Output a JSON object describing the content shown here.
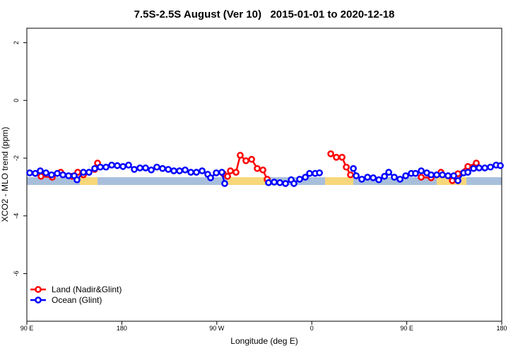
{
  "chart_data": {
    "type": "line",
    "title": "7.5S-2.5S August (Ver 10)   2015-01-01 to 2020-12-18",
    "x_label": "Longitude (deg E)",
    "y_label": "XCO2 - MLO trend (ppm)",
    "xlim": [
      90,
      540
    ],
    "ylim": [
      -7.65,
      2.5
    ],
    "xticks": [
      {
        "value": 90,
        "label": "90 E"
      },
      {
        "value": 180,
        "label": "180"
      },
      {
        "value": 270,
        "label": "90 W"
      },
      {
        "value": 360,
        "label": "0"
      },
      {
        "value": 450,
        "label": "90 E"
      },
      {
        "value": 540,
        "label": "180"
      }
    ],
    "yticks": [
      2,
      0,
      -2,
      -4,
      -6
    ],
    "legend_position": "bottom-left",
    "series": [
      {
        "name": "Land (Nadir&Glint)",
        "color": "#ff0000",
        "x": [
          103.4,
          114.1,
          122.1,
          132.9,
          138.2,
          143.6,
          154.3,
          157.0,
          220,
          276.2,
          280.2,
          282.9,
          288.2,
          292.2,
          297.6,
          303.0,
          308.3,
          313.7,
          317.7,
          350,
          378.0,
          383.3,
          388.7,
          392.7,
          396.7,
          430,
          463.7,
          473.1,
          482.4,
          493.2,
          498.5,
          507.9,
          515.9
        ],
        "values": [
          -2.63,
          -2.66,
          -2.49,
          -2.63,
          -2.49,
          -2.58,
          -2.39,
          -2.17,
          null,
          -2.54,
          -2.63,
          -2.44,
          -2.49,
          -1.9,
          -2.09,
          -2.04,
          -2.36,
          -2.41,
          -2.73,
          null,
          -1.85,
          -1.97,
          -1.97,
          -2.31,
          -2.58,
          null,
          -2.66,
          -2.68,
          -2.49,
          -2.78,
          -2.54,
          -2.29,
          -2.17
        ]
      },
      {
        "name": "Ocean (Glint)",
        "color": "#0000ff",
        "x": [
          92.7,
          98.0,
          102.7,
          108.1,
          113.4,
          118.8,
          124.2,
          129.5,
          134.9,
          137.5,
          143.6,
          148.9,
          154.3,
          159.6,
          165.0,
          170.4,
          175.7,
          181.1,
          186.4,
          191.8,
          197.2,
          202.5,
          207.9,
          213.2,
          218.6,
          224.0,
          229.3,
          234.7,
          240.0,
          245.4,
          250.7,
          256.1,
          261.4,
          264.1,
          269.5,
          274.8,
          277.5,
          298,
          319.0,
          324.4,
          329.8,
          335.1,
          340.5,
          343.1,
          348.5,
          353.9,
          357.9,
          363.2,
          367.3,
          383,
          399.4,
          402.1,
          407.4,
          412.8,
          418.2,
          423.5,
          428.9,
          432.9,
          438.2,
          443.6,
          449.0,
          454.3,
          458.3,
          463.7,
          469.0,
          473.1,
          478.4,
          483.8,
          489.1,
          494.5,
          498.5,
          503.9,
          507.9,
          513.3,
          518.6,
          524.0,
          529.3,
          534.7,
          538.7
        ],
        "values": [
          -2.51,
          -2.53,
          -2.44,
          -2.51,
          -2.58,
          -2.53,
          -2.58,
          -2.61,
          -2.61,
          -2.75,
          -2.49,
          -2.49,
          -2.36,
          -2.31,
          -2.31,
          -2.24,
          -2.26,
          -2.29,
          -2.24,
          -2.39,
          -2.34,
          -2.34,
          -2.41,
          -2.31,
          -2.36,
          -2.39,
          -2.44,
          -2.44,
          -2.41,
          -2.49,
          -2.49,
          -2.44,
          -2.56,
          -2.68,
          -2.51,
          -2.49,
          -2.88,
          null,
          -2.85,
          -2.83,
          -2.85,
          -2.88,
          -2.75,
          -2.88,
          -2.73,
          -2.66,
          -2.53,
          -2.53,
          -2.51,
          null,
          -2.36,
          -2.61,
          -2.73,
          -2.66,
          -2.68,
          -2.75,
          -2.63,
          -2.49,
          -2.66,
          -2.73,
          -2.61,
          -2.53,
          -2.53,
          -2.44,
          -2.51,
          -2.58,
          -2.58,
          -2.58,
          -2.61,
          -2.61,
          -2.78,
          -2.51,
          -2.49,
          -2.36,
          -2.34,
          -2.34,
          -2.31,
          -2.24,
          -2.26
        ]
      }
    ]
  }
}
